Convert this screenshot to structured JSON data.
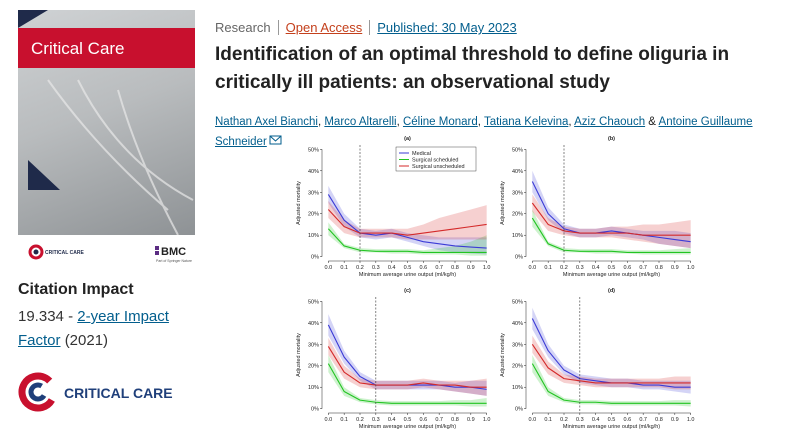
{
  "journal": {
    "cover_title": "Critical Care",
    "cover_logo": "CRITICAL CARE",
    "publisher": "BMC",
    "publisher_sub": "Part of Springer Nature"
  },
  "sidebar": {
    "heading": "Citation Impact",
    "impact_value": "19.334",
    "impact_sep": "-",
    "impact_link": "2-year Impact Factor",
    "impact_year": "(2021)",
    "logo_text": "CRITICAL CARE"
  },
  "article": {
    "type": "Research",
    "access": "Open Access",
    "published": "Published: 30 May 2023",
    "title": "Identification of an optimal threshold to define oliguria in critically ill patients: an observational study",
    "authors": [
      {
        "name": "Nathan Axel Bianchi",
        "after": ","
      },
      {
        "name": "Marco Altarelli",
        "after": ","
      },
      {
        "name": "Céline Monard",
        "after": ","
      },
      {
        "name": "Tatiana Kelevina",
        "after": ","
      },
      {
        "name": "Aziz Chaouch",
        "after": " &"
      },
      {
        "name": "Antoine Guillaume Schneider"
      }
    ]
  },
  "figure": {
    "type": "line",
    "y_label": "Adjusted mortality",
    "x_label": "Minimum average urine output (ml/kg/h)",
    "x": [
      0.0,
      0.1,
      0.2,
      0.3,
      0.4,
      0.5,
      0.6,
      0.7,
      0.8,
      0.9,
      1.0
    ],
    "xlim": [
      -0.04,
      1.04
    ],
    "ylim": [
      -2,
      52
    ],
    "xticks": [
      {
        "value": 0,
        "label": "0.0"
      },
      {
        "value": 0.1,
        "label": "0.1"
      },
      {
        "value": 0.2,
        "label": "0.2"
      },
      {
        "value": 0.3,
        "label": "0.3"
      },
      {
        "value": 0.4,
        "label": "0.4"
      },
      {
        "value": 0.5,
        "label": "0.5"
      },
      {
        "value": 0.6,
        "label": "0.6"
      },
      {
        "value": 0.7,
        "label": "0.7"
      },
      {
        "value": 0.8,
        "label": "0.8"
      },
      {
        "value": 0.9,
        "label": "0.9"
      },
      {
        "value": 1,
        "label": "1.0"
      }
    ],
    "yticks": [
      {
        "value": 0,
        "label": "0%"
      },
      {
        "value": 10,
        "label": "10%"
      },
      {
        "value": 20,
        "label": "20%"
      },
      {
        "value": 30,
        "label": "30%"
      },
      {
        "value": 40,
        "label": "40%"
      },
      {
        "value": 50,
        "label": "50%"
      }
    ],
    "legend": [
      {
        "name": "Medical",
        "color": "#3b3bd6"
      },
      {
        "name": "Surgical scheduled",
        "color": "#22c422"
      },
      {
        "name": "Surgical unscheduled",
        "color": "#d42a2a"
      }
    ],
    "panels": [
      {
        "title": "(a)",
        "threshold": 0.2,
        "show_legend": true,
        "series": [
          {
            "values": [
              29,
              17,
              11,
              10,
              11,
              9,
              7,
              6,
              5,
              4.5,
              4
            ],
            "lower": [
              25,
              14,
              9,
              8,
              9,
              7,
              5,
              3,
              2,
              1.5,
              1
            ],
            "upper": [
              33,
              20,
              13,
              12,
              13,
              11,
              10,
              9,
              9,
              9,
              9
            ]
          },
          {
            "values": [
              13,
              5,
              3,
              2.5,
              2.5,
              2.5,
              2,
              2,
              2,
              2,
              2
            ],
            "lower": [
              10,
              4,
              2,
              2,
              1.5,
              1.5,
              1,
              1,
              1,
              0.5,
              0.5
            ],
            "upper": [
              16,
              6,
              4,
              3.5,
              3.5,
              3.5,
              3,
              4,
              5,
              7,
              10
            ]
          },
          {
            "values": [
              22,
              14,
              11,
              11,
              11,
              10,
              11,
              12,
              13,
              14,
              15
            ],
            "lower": [
              18,
              11,
              9,
              9,
              9,
              8,
              8,
              8,
              8,
              8,
              8
            ],
            "upper": [
              26,
              17,
              13,
              13,
              13,
              13,
              15,
              18,
              20,
              22,
              24
            ]
          }
        ]
      },
      {
        "title": "(b)",
        "threshold": 0.2,
        "show_legend": false,
        "series": [
          {
            "values": [
              35,
              20,
              13,
              11,
              11,
              12,
              11,
              10,
              9,
              8,
              7
            ],
            "lower": [
              30,
              17,
              11,
              9,
              9,
              10,
              9,
              8,
              6,
              5,
              4
            ],
            "upper": [
              40,
              23,
              15,
              13,
              13,
              14,
              13,
              12,
              12,
              12,
              11
            ]
          },
          {
            "values": [
              18,
              6,
              3,
              2.5,
              2.5,
              2.5,
              2,
              2,
              2,
              2,
              2
            ],
            "lower": [
              14,
              5,
              2,
              2,
              1.5,
              1.5,
              1.5,
              1,
              1,
              1,
              1
            ],
            "upper": [
              22,
              7,
              4,
              3.5,
              3.5,
              3.5,
              3,
              3,
              3,
              3.5,
              4
            ]
          },
          {
            "values": [
              25,
              15,
              12,
              11,
              11,
              11,
              11,
              10,
              10,
              10,
              10
            ],
            "lower": [
              21,
              12,
              10,
              9,
              9,
              9,
              8,
              7,
              6,
              5,
              4
            ],
            "upper": [
              29,
              18,
              14,
              13,
              13,
              14,
              14,
              15,
              15,
              16,
              17
            ]
          }
        ]
      },
      {
        "title": "(c)",
        "threshold": 0.3,
        "show_legend": false,
        "series": [
          {
            "values": [
              39,
              24,
              15,
              11,
              11,
              11,
              11,
              11,
              10,
              10,
              9
            ],
            "lower": [
              34,
              21,
              13,
              9,
              9,
              9,
              9,
              9,
              8,
              7,
              6
            ],
            "upper": [
              44,
              27,
              17,
              13,
              13,
              13,
              13,
              13,
              12,
              13,
              13
            ]
          },
          {
            "values": [
              21,
              8,
              4,
              3,
              2.5,
              2.5,
              2.5,
              2.5,
              2.5,
              2.5,
              2.5
            ],
            "lower": [
              17,
              6,
              3,
              2,
              1.5,
              1.5,
              1.5,
              1.5,
              1.5,
              1,
              1
            ],
            "upper": [
              25,
              10,
              5,
              4,
              3.5,
              3.5,
              3.5,
              3.5,
              4,
              4,
              5
            ]
          },
          {
            "values": [
              29,
              17,
              12,
              11,
              11,
              11,
              12,
              11,
              11,
              10,
              10
            ],
            "lower": [
              25,
              14,
              10,
              9,
              9,
              9,
              10,
              9,
              8,
              7,
              6
            ],
            "upper": [
              33,
              20,
              14,
              13,
              13,
              13,
              14,
              13,
              13,
              13,
              14
            ]
          }
        ]
      },
      {
        "title": "(d)",
        "threshold": 0.3,
        "show_legend": false,
        "series": [
          {
            "values": [
              42,
              27,
              18,
              14,
              13,
              12,
              12,
              11,
              11,
              10,
              10
            ],
            "lower": [
              37,
              24,
              16,
              12,
              11,
              10,
              10,
              9,
              9,
              8,
              7
            ],
            "upper": [
              47,
              30,
              20,
              16,
              15,
              14,
              14,
              13,
              13,
              13,
              13
            ]
          },
          {
            "values": [
              21,
              8,
              4,
              3,
              3,
              2.5,
              2.5,
              2.5,
              2.5,
              2.5,
              2.5
            ],
            "lower": [
              17,
              6,
              3,
              2,
              2,
              1.5,
              1.5,
              1.5,
              1.5,
              1.5,
              1
            ],
            "upper": [
              25,
              10,
              5,
              4,
              4,
              3.5,
              3.5,
              3.5,
              3.5,
              4,
              4
            ]
          },
          {
            "values": [
              30,
              19,
              14,
              13,
              12,
              12,
              12,
              12,
              12,
              12,
              12
            ],
            "lower": [
              26,
              16,
              12,
              11,
              10,
              10,
              10,
              10,
              10,
              9,
              9
            ],
            "upper": [
              34,
              22,
              16,
              15,
              14,
              14,
              14,
              14,
              14,
              15,
              15
            ]
          }
        ]
      }
    ]
  }
}
